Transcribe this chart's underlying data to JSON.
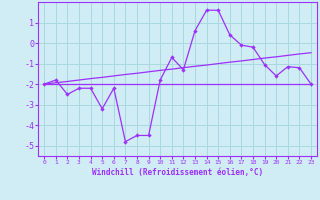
{
  "xlabel": "Windchill (Refroidissement éolien,°C)",
  "x_values": [
    0,
    1,
    2,
    3,
    4,
    5,
    6,
    7,
    8,
    9,
    10,
    11,
    12,
    13,
    14,
    15,
    16,
    17,
    18,
    19,
    20,
    21,
    22,
    23
  ],
  "line1_y": [
    -2.0,
    -1.8,
    -2.5,
    -2.2,
    -2.2,
    -3.2,
    -2.2,
    -4.8,
    -4.5,
    -4.5,
    -1.8,
    -0.7,
    -1.3,
    0.6,
    1.6,
    1.6,
    0.4,
    -0.1,
    -0.2,
    -1.05,
    -1.6,
    -1.15,
    -1.2,
    -2.0
  ],
  "line2_y": [
    -2.0,
    -2.0,
    -2.0,
    -2.0,
    -2.0,
    -2.0,
    -2.0,
    -2.0,
    -2.0,
    -2.0,
    -2.0,
    -2.0,
    -2.0,
    -2.0,
    -2.0,
    -2.0,
    -2.0,
    -2.0,
    -2.0,
    -2.0,
    -2.0,
    -2.0,
    -2.0,
    -2.0
  ],
  "line3_y": [
    -2.0,
    -1.93,
    -1.87,
    -1.8,
    -1.73,
    -1.67,
    -1.6,
    -1.53,
    -1.47,
    -1.4,
    -1.33,
    -1.27,
    -1.2,
    -1.13,
    -1.07,
    -1.0,
    -0.93,
    -0.87,
    -0.8,
    -0.73,
    -0.67,
    -0.6,
    -0.53,
    -0.47
  ],
  "line_color": "#9B30FF",
  "bg_color": "#d0ecf4",
  "grid_color": "#a8d8e0",
  "ylim": [
    -5.5,
    2.0
  ],
  "yticks": [
    1,
    0,
    -1,
    -2,
    -3,
    -4,
    -5
  ],
  "xlim": [
    -0.5,
    23.5
  ]
}
